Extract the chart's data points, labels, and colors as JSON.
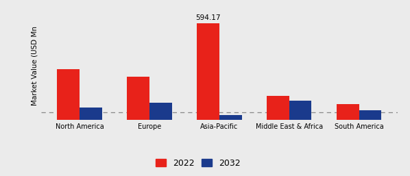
{
  "categories": [
    "North America",
    "Europe",
    "Asia-Pacific",
    "Middle East & Africa",
    "South America"
  ],
  "values_2022": [
    310,
    265,
    594.17,
    148,
    95
  ],
  "values_2032": [
    75,
    105,
    30,
    118,
    58
  ],
  "bar_color_2022": "#e8221a",
  "bar_color_2032": "#1a3a8c",
  "annotation_text": "594.17",
  "annotation_bar_index": 2,
  "ylabel": "Market Value (USD Mn",
  "ylim": [
    0,
    660
  ],
  "background_color": "#ebebeb",
  "legend_labels": [
    "2022",
    "2032"
  ],
  "bar_width": 0.32,
  "dashed_line_y": 45
}
